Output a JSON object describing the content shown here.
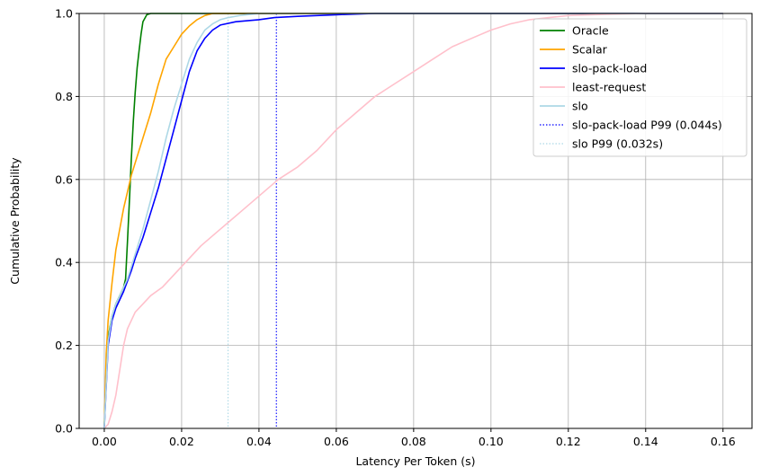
{
  "chart_data": {
    "type": "line",
    "title": "",
    "xlabel": "Latency Per Token (s)",
    "ylabel": "Cumulative Probability",
    "xlim": [
      -0.0065,
      0.1675
    ],
    "ylim": [
      0,
      1
    ],
    "xticks": [
      0.0,
      0.02,
      0.04,
      0.06,
      0.08,
      0.1,
      0.12,
      0.14,
      0.16
    ],
    "xtick_labels": [
      "0.00",
      "0.02",
      "0.04",
      "0.06",
      "0.08",
      "0.10",
      "0.12",
      "0.14",
      "0.16"
    ],
    "yticks": [
      0.0,
      0.2,
      0.4,
      0.6,
      0.8,
      1.0
    ],
    "ytick_labels": [
      "0.0",
      "0.2",
      "0.4",
      "0.6",
      "0.8",
      "1.0"
    ],
    "grid": true,
    "legend_position": "top-right",
    "series": [
      {
        "name": "Oracle",
        "color": "#008000",
        "style": "solid",
        "points": [
          [
            0.0,
            0.0
          ],
          [
            0.0005,
            0.15
          ],
          [
            0.001,
            0.22
          ],
          [
            0.002,
            0.27
          ],
          [
            0.003,
            0.3
          ],
          [
            0.004,
            0.32
          ],
          [
            0.005,
            0.34
          ],
          [
            0.0055,
            0.36
          ],
          [
            0.006,
            0.45
          ],
          [
            0.0065,
            0.55
          ],
          [
            0.007,
            0.65
          ],
          [
            0.0075,
            0.74
          ],
          [
            0.008,
            0.81
          ],
          [
            0.0085,
            0.87
          ],
          [
            0.009,
            0.91
          ],
          [
            0.0095,
            0.95
          ],
          [
            0.01,
            0.98
          ],
          [
            0.011,
            0.997
          ],
          [
            0.012,
            1.0
          ],
          [
            0.16,
            1.0
          ]
        ]
      },
      {
        "name": "Scalar",
        "color": "#ffa500",
        "style": "solid",
        "points": [
          [
            0.0,
            0.0
          ],
          [
            0.0005,
            0.18
          ],
          [
            0.001,
            0.26
          ],
          [
            0.002,
            0.35
          ],
          [
            0.003,
            0.43
          ],
          [
            0.004,
            0.48
          ],
          [
            0.005,
            0.53
          ],
          [
            0.006,
            0.57
          ],
          [
            0.007,
            0.61
          ],
          [
            0.008,
            0.64
          ],
          [
            0.009,
            0.67
          ],
          [
            0.01,
            0.7
          ],
          [
            0.012,
            0.76
          ],
          [
            0.014,
            0.83
          ],
          [
            0.016,
            0.89
          ],
          [
            0.018,
            0.92
          ],
          [
            0.02,
            0.95
          ],
          [
            0.022,
            0.97
          ],
          [
            0.024,
            0.985
          ],
          [
            0.026,
            0.995
          ],
          [
            0.028,
            1.0
          ],
          [
            0.16,
            1.0
          ]
        ]
      },
      {
        "name": "slo-pack-load",
        "color": "#0000ff",
        "style": "solid",
        "points": [
          [
            0.0,
            0.0
          ],
          [
            0.001,
            0.2
          ],
          [
            0.002,
            0.26
          ],
          [
            0.003,
            0.29
          ],
          [
            0.004,
            0.31
          ],
          [
            0.005,
            0.33
          ],
          [
            0.006,
            0.355
          ],
          [
            0.007,
            0.38
          ],
          [
            0.008,
            0.41
          ],
          [
            0.01,
            0.46
          ],
          [
            0.012,
            0.52
          ],
          [
            0.014,
            0.58
          ],
          [
            0.016,
            0.65
          ],
          [
            0.018,
            0.72
          ],
          [
            0.02,
            0.79
          ],
          [
            0.022,
            0.86
          ],
          [
            0.024,
            0.91
          ],
          [
            0.026,
            0.94
          ],
          [
            0.028,
            0.96
          ],
          [
            0.03,
            0.972
          ],
          [
            0.034,
            0.98
          ],
          [
            0.04,
            0.985
          ],
          [
            0.044,
            0.99
          ],
          [
            0.05,
            0.993
          ],
          [
            0.06,
            0.997
          ],
          [
            0.07,
            1.0
          ],
          [
            0.16,
            1.0
          ]
        ]
      },
      {
        "name": "least-request",
        "color": "#ffc0cb",
        "style": "solid",
        "points": [
          [
            0.0,
            0.0
          ],
          [
            0.001,
            0.01
          ],
          [
            0.002,
            0.04
          ],
          [
            0.003,
            0.08
          ],
          [
            0.004,
            0.14
          ],
          [
            0.005,
            0.2
          ],
          [
            0.006,
            0.24
          ],
          [
            0.008,
            0.28
          ],
          [
            0.01,
            0.3
          ],
          [
            0.012,
            0.32
          ],
          [
            0.015,
            0.34
          ],
          [
            0.02,
            0.39
          ],
          [
            0.025,
            0.44
          ],
          [
            0.03,
            0.48
          ],
          [
            0.035,
            0.52
          ],
          [
            0.04,
            0.56
          ],
          [
            0.045,
            0.6
          ],
          [
            0.05,
            0.63
          ],
          [
            0.055,
            0.67
          ],
          [
            0.06,
            0.72
          ],
          [
            0.065,
            0.76
          ],
          [
            0.07,
            0.8
          ],
          [
            0.075,
            0.83
          ],
          [
            0.08,
            0.86
          ],
          [
            0.085,
            0.89
          ],
          [
            0.09,
            0.92
          ],
          [
            0.095,
            0.94
          ],
          [
            0.1,
            0.96
          ],
          [
            0.105,
            0.975
          ],
          [
            0.11,
            0.985
          ],
          [
            0.115,
            0.99
          ],
          [
            0.12,
            0.995
          ],
          [
            0.13,
            0.998
          ],
          [
            0.14,
            1.0
          ],
          [
            0.16,
            1.0
          ]
        ]
      },
      {
        "name": "slo",
        "color": "#add8e6",
        "style": "solid",
        "points": [
          [
            0.0,
            0.0
          ],
          [
            0.001,
            0.21
          ],
          [
            0.002,
            0.27
          ],
          [
            0.003,
            0.3
          ],
          [
            0.004,
            0.32
          ],
          [
            0.005,
            0.34
          ],
          [
            0.006,
            0.36
          ],
          [
            0.007,
            0.39
          ],
          [
            0.008,
            0.42
          ],
          [
            0.01,
            0.48
          ],
          [
            0.012,
            0.55
          ],
          [
            0.014,
            0.62
          ],
          [
            0.016,
            0.7
          ],
          [
            0.018,
            0.77
          ],
          [
            0.02,
            0.83
          ],
          [
            0.022,
            0.89
          ],
          [
            0.024,
            0.93
          ],
          [
            0.026,
            0.96
          ],
          [
            0.028,
            0.975
          ],
          [
            0.03,
            0.985
          ],
          [
            0.032,
            0.99
          ],
          [
            0.035,
            0.995
          ],
          [
            0.04,
            1.0
          ],
          [
            0.16,
            1.0
          ]
        ]
      }
    ],
    "reference_lines": [
      {
        "name": "slo-pack-load P99 (0.044s)",
        "x": 0.0445,
        "color": "#0000ff",
        "style": "dotted"
      },
      {
        "name": "slo P99 (0.032s)",
        "x": 0.032,
        "color": "#add8e6",
        "style": "dotted"
      }
    ]
  }
}
